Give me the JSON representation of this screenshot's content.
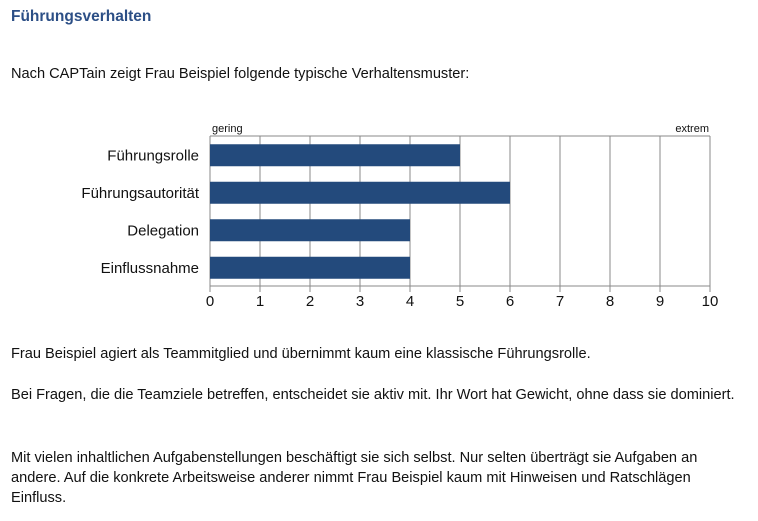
{
  "heading": "Führungsverhalten",
  "intro": "Nach CAPTain zeigt Frau Beispiel folgende typische Verhaltensmuster:",
  "chart_data": {
    "type": "bar",
    "orientation": "horizontal",
    "categories": [
      "Führungsrolle",
      "Führungsautorität",
      "Delegation",
      "Einflussnahme"
    ],
    "values": [
      5,
      6,
      4,
      4
    ],
    "xlim": [
      0,
      10
    ],
    "xticks": [
      "0",
      "1",
      "2",
      "3",
      "4",
      "5",
      "6",
      "7",
      "8",
      "9",
      "10"
    ],
    "label_low": "gering",
    "label_high": "extrem",
    "grid": true,
    "bar_color": "#234a7c"
  },
  "paragraphs": [
    "Frau Beispiel agiert als Teammitglied und übernimmt kaum eine klassische Führungsrolle.",
    "Bei Fragen, die die Teamziele betreffen, entscheidet sie aktiv mit. Ihr Wort hat Gewicht, ohne dass sie dominiert.",
    "Mit vielen inhaltlichen Aufgabenstellungen beschäftigt sie sich selbst. Nur selten überträgt sie Aufgaben an andere. Auf die konkrete Arbeitsweise anderer nimmt Frau Beispiel kaum mit Hinweisen und Ratschlägen Einfluss."
  ]
}
